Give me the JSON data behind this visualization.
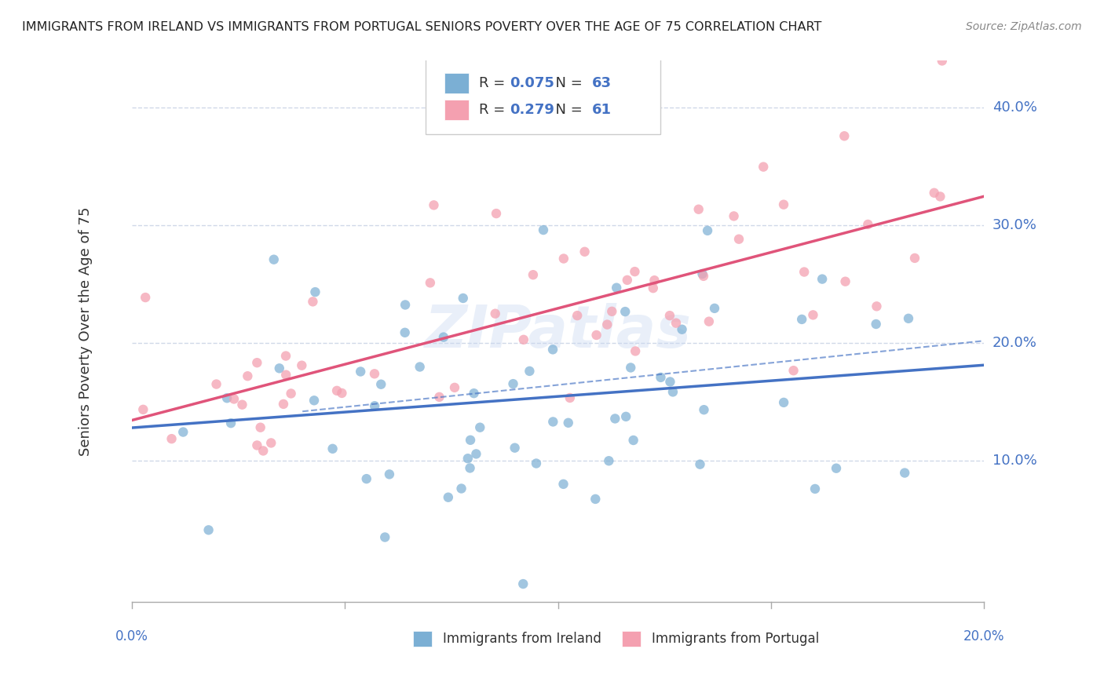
{
  "title": "IMMIGRANTS FROM IRELAND VS IMMIGRANTS FROM PORTUGAL SENIORS POVERTY OVER THE AGE OF 75 CORRELATION CHART",
  "source": "Source: ZipAtlas.com",
  "ylabel": "Seniors Poverty Over the Age of 75",
  "xlim": [
    0.0,
    0.2
  ],
  "ylim": [
    -0.02,
    0.44
  ],
  "ytick_positions": [
    0.1,
    0.2,
    0.3,
    0.4
  ],
  "ytick_labels": [
    "10.0%",
    "20.0%",
    "30.0%",
    "40.0%"
  ],
  "ireland_R": 0.075,
  "ireland_N": 63,
  "portugal_R": 0.279,
  "portugal_N": 61,
  "ireland_color": "#7BAFD4",
  "portugal_color": "#F4A0B0",
  "ireland_line_color": "#4472C4",
  "portugal_line_color": "#E0547A",
  "watermark": "ZIPatlas",
  "background_color": "#FFFFFF",
  "grid_color": "#D0D8E8",
  "axis_label_color": "#4472C4",
  "legend_R_color": "#4472C4"
}
